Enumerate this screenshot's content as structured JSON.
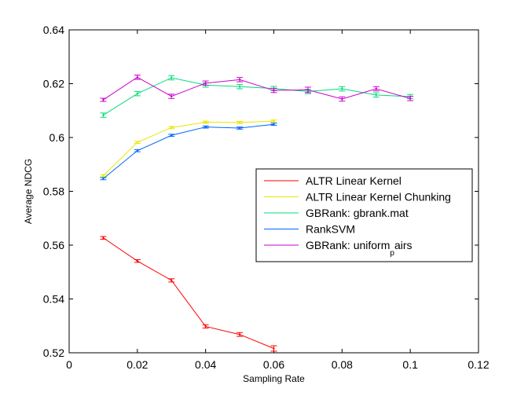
{
  "chart_data": {
    "type": "line",
    "title": "",
    "xlabel": "Sampling Rate",
    "ylabel": "Average NDCG",
    "xlim": [
      0,
      0.12
    ],
    "ylim": [
      0.52,
      0.64
    ],
    "xticks": [
      0,
      0.02,
      0.04,
      0.06,
      0.08,
      0.1,
      0.12
    ],
    "xtick_labels": [
      "0",
      "0.02",
      "0.04",
      "0.06",
      "0.08",
      "0.1",
      "0.12"
    ],
    "yticks": [
      0.52,
      0.54,
      0.56,
      0.58,
      0.6,
      0.62,
      0.64
    ],
    "ytick_labels": [
      "0.52",
      "0.54",
      "0.56",
      "0.58",
      "0.6",
      "0.62",
      "0.64"
    ],
    "grid": false,
    "legend_position": "center-right",
    "series": [
      {
        "name": "ALTR Linear Kernel",
        "color": "#ff0000",
        "x": [
          0.01,
          0.02,
          0.03,
          0.04,
          0.05,
          0.06
        ],
        "y": [
          0.5627,
          0.5541,
          0.5469,
          0.5298,
          0.5268,
          0.5216
        ],
        "err": [
          0.0005,
          0.0005,
          0.0006,
          0.0006,
          0.0007,
          0.001
        ]
      },
      {
        "name": "ALTR Linear Kernel Chunking",
        "color": "#e8e800",
        "x": [
          0.01,
          0.02,
          0.03,
          0.04,
          0.05,
          0.06
        ],
        "y": [
          0.5858,
          0.5982,
          0.6037,
          0.6057,
          0.6056,
          0.6061
        ],
        "err": [
          0.0004,
          0.0004,
          0.0004,
          0.0004,
          0.0004,
          0.0004
        ]
      },
      {
        "name": "GBRank: gbrank.mat",
        "color": "#00dd77",
        "x": [
          0.01,
          0.02,
          0.03,
          0.04,
          0.05,
          0.06,
          0.07,
          0.08,
          0.09,
          0.1
        ],
        "y": [
          0.6083,
          0.6163,
          0.6222,
          0.6195,
          0.6189,
          0.6182,
          0.6171,
          0.6181,
          0.6158,
          0.6152
        ],
        "err": [
          0.0008,
          0.0008,
          0.0008,
          0.0008,
          0.0008,
          0.0008,
          0.0008,
          0.0008,
          0.0008,
          0.0008
        ]
      },
      {
        "name": "RankSVM",
        "color": "#0066ff",
        "x": [
          0.01,
          0.02,
          0.03,
          0.04,
          0.05,
          0.06
        ],
        "y": [
          0.5847,
          0.5951,
          0.6008,
          0.6039,
          0.6035,
          0.6049
        ],
        "err": [
          0.0004,
          0.0004,
          0.0004,
          0.0004,
          0.0004,
          0.0004
        ]
      },
      {
        "name": "GBRank: uniform_pairs",
        "color": "#cc00cc",
        "x": [
          0.01,
          0.02,
          0.03,
          0.04,
          0.05,
          0.06,
          0.07,
          0.08,
          0.09,
          0.1
        ],
        "y": [
          0.614,
          0.6224,
          0.6153,
          0.6202,
          0.6215,
          0.6175,
          0.6177,
          0.6143,
          0.6181,
          0.6145
        ],
        "err": [
          0.0006,
          0.0008,
          0.0008,
          0.0008,
          0.0008,
          0.0008,
          0.001,
          0.0008,
          0.0008,
          0.0008
        ]
      }
    ],
    "legend": [
      {
        "text": "ALTR Linear Kernel"
      },
      {
        "text": "ALTR Linear Kernel Chunking"
      },
      {
        "text": "GBRank: gbrank.mat"
      },
      {
        "text": "RankSVM"
      },
      {
        "text": "GBRank: uniform",
        "subscript": "p",
        "suffix": "airs"
      }
    ]
  }
}
